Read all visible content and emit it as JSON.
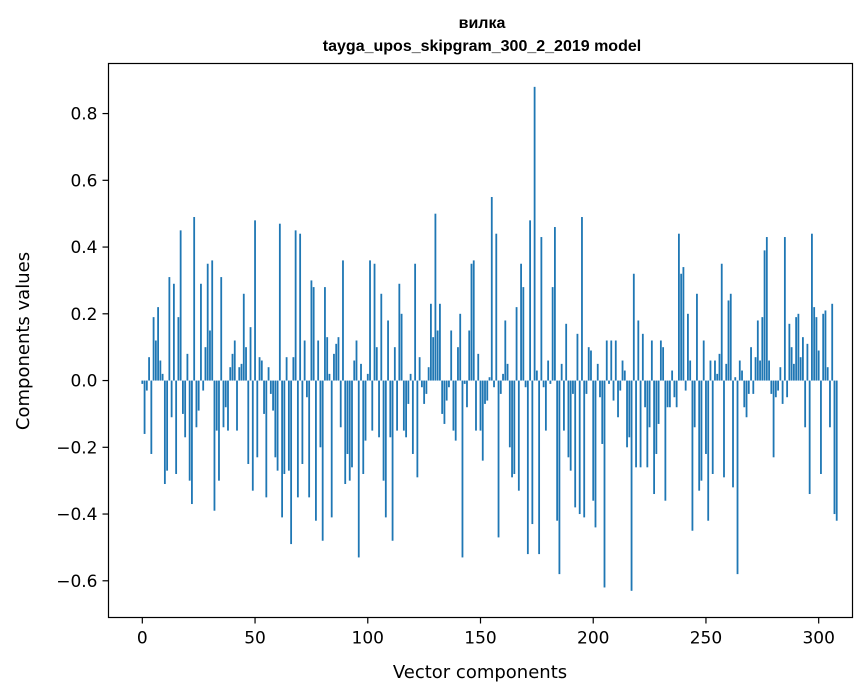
{
  "chart_data": {
    "type": "bar",
    "title": "вилка",
    "subtitle": "tayga_upos_skipgram_300_2_2019 model",
    "xlabel": "Vector components",
    "ylabel": "Components values",
    "xlim": [
      -15,
      315
    ],
    "ylim": [
      -0.71,
      0.95
    ],
    "xticks": [
      0,
      50,
      100,
      150,
      200,
      250,
      300
    ],
    "yticks": [
      -0.6,
      -0.4,
      -0.2,
      0.0,
      0.2,
      0.4,
      0.6,
      0.8
    ],
    "xtick_labels": [
      "0",
      "50",
      "100",
      "150",
      "200",
      "250",
      "300"
    ],
    "ytick_labels": [
      "−0.6",
      "−0.4",
      "−0.2",
      "0.0",
      "0.2",
      "0.4",
      "0.6",
      "0.8"
    ],
    "grid": false,
    "bar_color": "#1f77b4",
    "x_start": 0,
    "values": [
      -0.01,
      -0.16,
      -0.03,
      0.07,
      -0.22,
      0.19,
      0.12,
      0.22,
      0.06,
      0.02,
      -0.31,
      -0.27,
      0.31,
      -0.11,
      0.29,
      -0.28,
      0.19,
      0.45,
      -0.1,
      -0.17,
      0.08,
      -0.3,
      -0.37,
      0.49,
      -0.14,
      -0.09,
      0.29,
      -0.03,
      0.1,
      0.35,
      0.15,
      0.36,
      -0.39,
      -0.15,
      -0.3,
      0.31,
      -0.14,
      -0.08,
      -0.15,
      0.04,
      0.08,
      0.12,
      -0.15,
      0.04,
      0.05,
      0.26,
      0.1,
      -0.25,
      0.16,
      -0.33,
      0.48,
      -0.23,
      0.07,
      0.06,
      -0.1,
      -0.35,
      0.04,
      -0.04,
      -0.09,
      -0.23,
      -0.27,
      0.47,
      -0.41,
      -0.28,
      0.07,
      -0.27,
      -0.49,
      0.07,
      0.45,
      -0.35,
      0.44,
      -0.25,
      0.12,
      -0.05,
      -0.35,
      0.3,
      0.28,
      -0.42,
      0.12,
      -0.2,
      -0.48,
      0.28,
      0.13,
      0.02,
      -0.41,
      0.08,
      0.11,
      0.13,
      -0.14,
      0.36,
      -0.31,
      -0.22,
      -0.3,
      -0.26,
      0.06,
      0.12,
      -0.53,
      0.05,
      -0.28,
      -0.18,
      0.02,
      0.36,
      -0.15,
      0.35,
      0.1,
      -0.17,
      0.26,
      -0.3,
      -0.41,
      0.18,
      -0.17,
      -0.48,
      0.1,
      -0.15,
      0.29,
      0.2,
      -0.15,
      -0.17,
      -0.07,
      0.02,
      -0.22,
      0.35,
      -0.29,
      0.07,
      -0.02,
      -0.07,
      -0.04,
      0.04,
      0.23,
      0.13,
      0.5,
      0.15,
      0.23,
      -0.1,
      -0.13,
      -0.06,
      -0.02,
      0.15,
      -0.15,
      -0.18,
      0.1,
      0.2,
      -0.53,
      -0.01,
      -0.08,
      0.15,
      0.35,
      0.36,
      -0.15,
      0.08,
      -0.15,
      -0.24,
      -0.07,
      -0.06,
      0.01,
      0.55,
      -0.02,
      0.44,
      -0.47,
      -0.04,
      0.02,
      0.18,
      0.05,
      -0.2,
      -0.29,
      -0.28,
      0.22,
      -0.33,
      0.35,
      0.28,
      -0.02,
      -0.52,
      0.48,
      -0.43,
      0.88,
      0.03,
      -0.52,
      0.43,
      -0.02,
      -0.15,
      0.06,
      -0.01,
      0.28,
      0.46,
      -0.42,
      -0.58,
      0.05,
      -0.15,
      0.17,
      -0.23,
      -0.27,
      -0.04,
      -0.38,
      0.14,
      -0.4,
      0.49,
      -0.41,
      -0.04,
      0.1,
      0.09,
      -0.36,
      -0.44,
      0.05,
      -0.05,
      -0.19,
      -0.62,
      0.12,
      -0.01,
      0.12,
      -0.06,
      0.12,
      -0.11,
      -0.03,
      0.06,
      0.03,
      -0.2,
      -0.17,
      -0.63,
      0.32,
      -0.26,
      0.18,
      -0.26,
      0.14,
      -0.08,
      -0.26,
      -0.14,
      0.12,
      -0.34,
      -0.22,
      -0.13,
      0.12,
      0.1,
      -0.36,
      -0.08,
      -0.08,
      0.03,
      -0.05,
      -0.08,
      0.44,
      0.32,
      0.34,
      -0.03,
      0.2,
      0.06,
      -0.45,
      -0.14,
      0.26,
      -0.33,
      -0.3,
      0.12,
      -0.22,
      -0.42,
      0.06,
      -0.28,
      0.06,
      0.02,
      0.08,
      0.35,
      -0.29,
      0.05,
      0.24,
      0.26,
      -0.32,
      0.01,
      -0.58,
      0.06,
      0.03,
      -0.08,
      -0.11,
      -0.04,
      0.1,
      -0.04,
      0.07,
      0.18,
      0.06,
      0.19,
      0.39,
      0.43,
      0.06,
      -0.04,
      -0.23,
      -0.05,
      -0.03,
      0.04,
      -0.07,
      0.43,
      -0.05,
      0.17,
      0.1,
      0.05,
      0.19,
      0.2,
      0.07,
      0.13,
      -0.14,
      0.11,
      -0.34,
      0.44,
      0.22,
      0.19,
      0.09,
      -0.28,
      0.2,
      0.21,
      0.04,
      -0.14,
      0.23,
      -0.4,
      -0.42
    ]
  }
}
